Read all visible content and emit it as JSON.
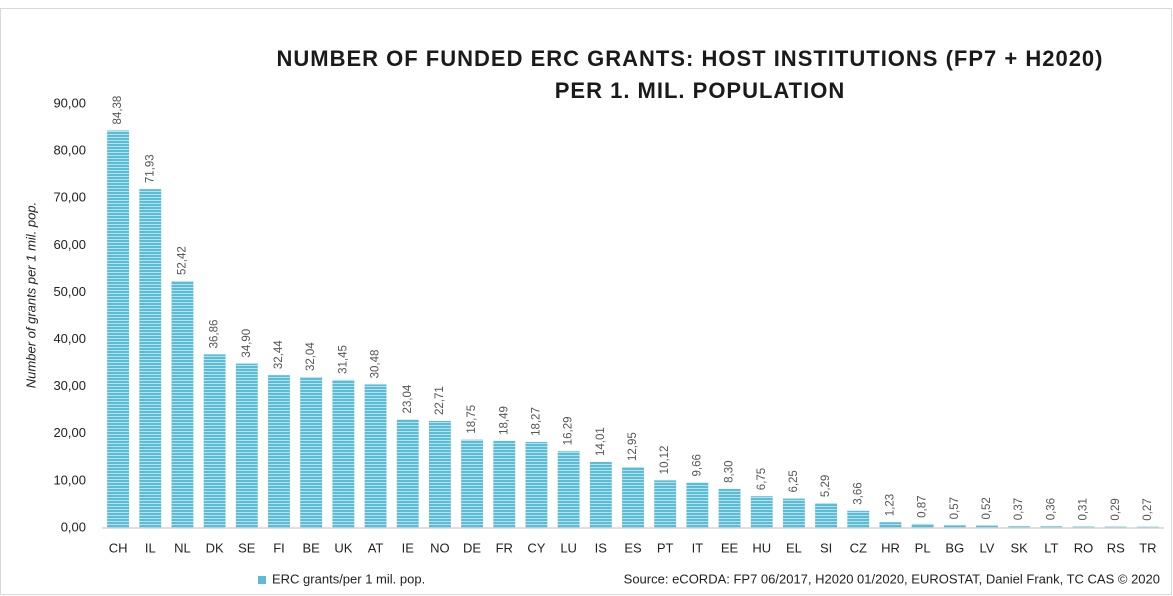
{
  "chart_data": {
    "type": "bar",
    "title": [
      "NUMBER OF FUNDED ERC GRANTS: HOST INSTITUTIONS (FP7 + H2020)",
      "PER 1. MIL. POPULATION"
    ],
    "y_label": "Number of grants per 1 mil. pop.",
    "source": "Source: eCORDA: FP7 06/2017, H2020 01/2020, EUROSTAT, Daniel Frank, TC CAS © 2020",
    "categories": [
      "CH",
      "IL",
      "NL",
      "DK",
      "SE",
      "FI",
      "BE",
      "UK",
      "AT",
      "IE",
      "NO",
      "DE",
      "FR",
      "CY",
      "LU",
      "IS",
      "ES",
      "PT",
      "IT",
      "EE",
      "HU",
      "EL",
      "SI",
      "CZ",
      "HR",
      "PL",
      "BG",
      "LV",
      "SK",
      "LT",
      "RO",
      "RS",
      "TR"
    ],
    "series": [
      {
        "name": "ERC grants/per 1 mil. pop.",
        "color": "#5bbcd6",
        "values": [
          84.38,
          71.93,
          52.42,
          36.86,
          34.9,
          32.44,
          32.04,
          31.45,
          30.48,
          23.04,
          22.71,
          18.75,
          18.49,
          18.27,
          16.29,
          14.01,
          12.95,
          10.12,
          9.66,
          8.3,
          6.75,
          6.25,
          5.29,
          3.66,
          1.23,
          0.87,
          0.57,
          0.52,
          0.37,
          0.36,
          0.31,
          0.29,
          0.27
        ],
        "value_labels": [
          "84,38",
          "71,93",
          "52,42",
          "36,86",
          "34,90",
          "32,44",
          "32,04",
          "31,45",
          "30,48",
          "23,04",
          "22,71",
          "18,75",
          "18,49",
          "18,27",
          "16,29",
          "14,01",
          "12,95",
          "10,12",
          "9,66",
          "8,30",
          "6,75",
          "6,25",
          "5,29",
          "3,66",
          "1,23",
          "0,87",
          "0,57",
          "0,52",
          "0,37",
          "0,36",
          "0,31",
          "0,29",
          "0,27"
        ]
      }
    ],
    "ylim": [
      0,
      90
    ],
    "yticks": [
      {
        "value": 0,
        "label": "0,00"
      },
      {
        "value": 10,
        "label": "10,00"
      },
      {
        "value": 20,
        "label": "20,00"
      },
      {
        "value": 30,
        "label": "30,00"
      },
      {
        "value": 40,
        "label": "40,00"
      },
      {
        "value": 50,
        "label": "50,00"
      },
      {
        "value": 60,
        "label": "60,00"
      },
      {
        "value": 70,
        "label": "70,00"
      },
      {
        "value": 80,
        "label": "80,00"
      },
      {
        "value": 90,
        "label": "90,00"
      }
    ],
    "grid": false,
    "legend": "bottom-left"
  }
}
